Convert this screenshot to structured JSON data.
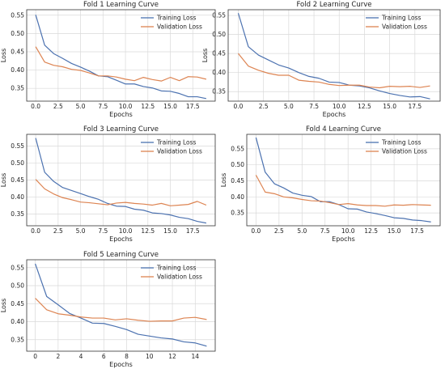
{
  "chart_data": [
    {
      "type": "line",
      "title": "Fold 1 Learning Curve",
      "xlabel": "Epochs",
      "ylabel": "Loss",
      "xlim": [
        -1,
        20
      ],
      "ylim": [
        0.315,
        0.565
      ],
      "xticks": [
        0.0,
        2.5,
        5.0,
        7.5,
        10.0,
        12.5,
        15.0,
        17.5
      ],
      "xtick_labels": [
        "0.0",
        "2.5",
        "5.0",
        "7.5",
        "10.0",
        "12.5",
        "15.0",
        "17.5"
      ],
      "yticks": [
        0.35,
        0.4,
        0.45,
        0.5,
        0.55
      ],
      "ytick_labels": [
        "0.35",
        "0.40",
        "0.45",
        "0.50",
        "0.55"
      ],
      "grid": true,
      "legend": "top-right",
      "x": [
        0,
        1,
        2,
        3,
        4,
        5,
        6,
        7,
        8,
        9,
        10,
        11,
        12,
        13,
        14,
        15,
        16,
        17,
        18,
        19
      ],
      "series": [
        {
          "name": "Training Loss",
          "color": "#4c72b0",
          "values": [
            0.551,
            0.468,
            0.445,
            0.432,
            0.418,
            0.408,
            0.397,
            0.384,
            0.382,
            0.372,
            0.362,
            0.362,
            0.355,
            0.351,
            0.343,
            0.342,
            0.336,
            0.327,
            0.327,
            0.322
          ]
        },
        {
          "name": "Validation Loss",
          "color": "#dd8452",
          "values": [
            0.464,
            0.422,
            0.413,
            0.409,
            0.402,
            0.399,
            0.392,
            0.384,
            0.384,
            0.381,
            0.375,
            0.371,
            0.38,
            0.374,
            0.37,
            0.38,
            0.371,
            0.382,
            0.381,
            0.375
          ]
        }
      ]
    },
    {
      "type": "line",
      "title": "Fold 2 Learning Curve",
      "xlabel": "Epochs",
      "ylabel": "Loss",
      "xlim": [
        -1,
        20
      ],
      "ylim": [
        0.325,
        0.565
      ],
      "xticks": [
        0.0,
        2.5,
        5.0,
        7.5,
        10.0,
        12.5,
        15.0,
        17.5
      ],
      "xtick_labels": [
        "0.0",
        "2.5",
        "5.0",
        "7.5",
        "10.0",
        "12.5",
        "15.0",
        "17.5"
      ],
      "yticks": [
        0.35,
        0.4,
        0.45,
        0.5,
        0.55
      ],
      "ytick_labels": [
        "0.35",
        "0.40",
        "0.45",
        "0.50",
        "0.55"
      ],
      "grid": true,
      "legend": "top-right",
      "x": [
        0,
        1,
        2,
        3,
        4,
        5,
        6,
        7,
        8,
        9,
        10,
        11,
        12,
        13,
        14,
        15,
        16,
        17,
        18,
        19
      ],
      "series": [
        {
          "name": "Training Loss",
          "color": "#4c72b0",
          "values": [
            0.556,
            0.468,
            0.446,
            0.433,
            0.42,
            0.412,
            0.4,
            0.39,
            0.385,
            0.375,
            0.374,
            0.367,
            0.365,
            0.36,
            0.352,
            0.345,
            0.34,
            0.336,
            0.337,
            0.331
          ]
        },
        {
          "name": "Validation Loss",
          "color": "#dd8452",
          "values": [
            0.45,
            0.417,
            0.406,
            0.398,
            0.393,
            0.393,
            0.38,
            0.377,
            0.375,
            0.369,
            0.366,
            0.367,
            0.367,
            0.362,
            0.36,
            0.364,
            0.363,
            0.364,
            0.361,
            0.365
          ]
        }
      ]
    },
    {
      "type": "line",
      "title": "Fold 3 Learning Curve",
      "xlabel": "Epochs",
      "ylabel": "Loss",
      "xlim": [
        -1,
        20
      ],
      "ylim": [
        0.315,
        0.585
      ],
      "xticks": [
        0.0,
        2.5,
        5.0,
        7.5,
        10.0,
        12.5,
        15.0,
        17.5
      ],
      "xtick_labels": [
        "0.0",
        "2.5",
        "5.0",
        "7.5",
        "10.0",
        "12.5",
        "15.0",
        "17.5"
      ],
      "yticks": [
        0.35,
        0.4,
        0.45,
        0.5,
        0.55
      ],
      "ytick_labels": [
        "0.35",
        "0.40",
        "0.45",
        "0.50",
        "0.55"
      ],
      "grid": true,
      "legend": "top-right",
      "x": [
        0,
        1,
        2,
        3,
        4,
        5,
        6,
        7,
        8,
        9,
        10,
        11,
        12,
        13,
        14,
        15,
        16,
        17,
        18,
        19
      ],
      "series": [
        {
          "name": "Training Loss",
          "color": "#4c72b0",
          "values": [
            0.574,
            0.473,
            0.446,
            0.428,
            0.419,
            0.41,
            0.401,
            0.393,
            0.381,
            0.373,
            0.372,
            0.364,
            0.361,
            0.353,
            0.351,
            0.347,
            0.34,
            0.336,
            0.328,
            0.323
          ]
        },
        {
          "name": "Validation Loss",
          "color": "#dd8452",
          "values": [
            0.452,
            0.424,
            0.409,
            0.398,
            0.392,
            0.385,
            0.383,
            0.38,
            0.377,
            0.382,
            0.384,
            0.381,
            0.379,
            0.376,
            0.381,
            0.374,
            0.376,
            0.378,
            0.387,
            0.376
          ]
        }
      ]
    },
    {
      "type": "line",
      "title": "Fold 4 Learning Curve",
      "xlabel": "Epochs",
      "ylabel": "Loss",
      "xlim": [
        -1,
        20
      ],
      "ylim": [
        0.31,
        0.595
      ],
      "xticks": [
        0.0,
        2.5,
        5.0,
        7.5,
        10.0,
        12.5,
        15.0,
        17.5
      ],
      "xtick_labels": [
        "0.0",
        "2.5",
        "5.0",
        "7.5",
        "10.0",
        "12.5",
        "15.0",
        "17.5"
      ],
      "yticks": [
        0.35,
        0.4,
        0.45,
        0.5,
        0.55
      ],
      "ytick_labels": [
        "0.35",
        "0.40",
        "0.45",
        "0.50",
        "0.55"
      ],
      "grid": true,
      "legend": "top-right",
      "x": [
        0,
        1,
        2,
        3,
        4,
        5,
        6,
        7,
        8,
        9,
        10,
        11,
        12,
        13,
        14,
        15,
        16,
        17,
        18,
        19
      ],
      "series": [
        {
          "name": "Training Loss",
          "color": "#4c72b0",
          "values": [
            0.585,
            0.477,
            0.441,
            0.428,
            0.412,
            0.405,
            0.401,
            0.385,
            0.385,
            0.376,
            0.363,
            0.362,
            0.353,
            0.348,
            0.342,
            0.335,
            0.333,
            0.328,
            0.326,
            0.322
          ]
        },
        {
          "name": "Validation Loss",
          "color": "#dd8452",
          "values": [
            0.468,
            0.415,
            0.41,
            0.4,
            0.397,
            0.392,
            0.388,
            0.387,
            0.382,
            0.376,
            0.379,
            0.375,
            0.373,
            0.373,
            0.371,
            0.375,
            0.374,
            0.376,
            0.375,
            0.374
          ]
        }
      ]
    },
    {
      "type": "line",
      "title": "Fold 5 Learning Curve",
      "xlabel": "Epochs",
      "ylabel": "Loss",
      "xlim": [
        -0.75,
        15.75
      ],
      "ylim": [
        0.318,
        0.572
      ],
      "xticks": [
        0,
        2,
        4,
        6,
        8,
        10,
        12,
        14
      ],
      "xtick_labels": [
        "0",
        "2",
        "4",
        "6",
        "8",
        "10",
        "12",
        "14"
      ],
      "yticks": [
        0.35,
        0.4,
        0.45,
        0.5,
        0.55
      ],
      "ytick_labels": [
        "0.35",
        "0.40",
        "0.45",
        "0.50",
        "0.55"
      ],
      "grid": true,
      "legend": "top-right",
      "x": [
        0,
        1,
        2,
        3,
        4,
        5,
        6,
        7,
        8,
        9,
        10,
        11,
        12,
        13,
        14,
        15
      ],
      "series": [
        {
          "name": "Training Loss",
          "color": "#4c72b0",
          "values": [
            0.561,
            0.47,
            0.447,
            0.423,
            0.41,
            0.396,
            0.395,
            0.387,
            0.378,
            0.365,
            0.36,
            0.355,
            0.352,
            0.344,
            0.341,
            0.332
          ]
        },
        {
          "name": "Validation Loss",
          "color": "#dd8452",
          "values": [
            0.465,
            0.433,
            0.422,
            0.418,
            0.413,
            0.41,
            0.41,
            0.405,
            0.408,
            0.404,
            0.401,
            0.402,
            0.402,
            0.41,
            0.412,
            0.406
          ]
        }
      ]
    }
  ]
}
